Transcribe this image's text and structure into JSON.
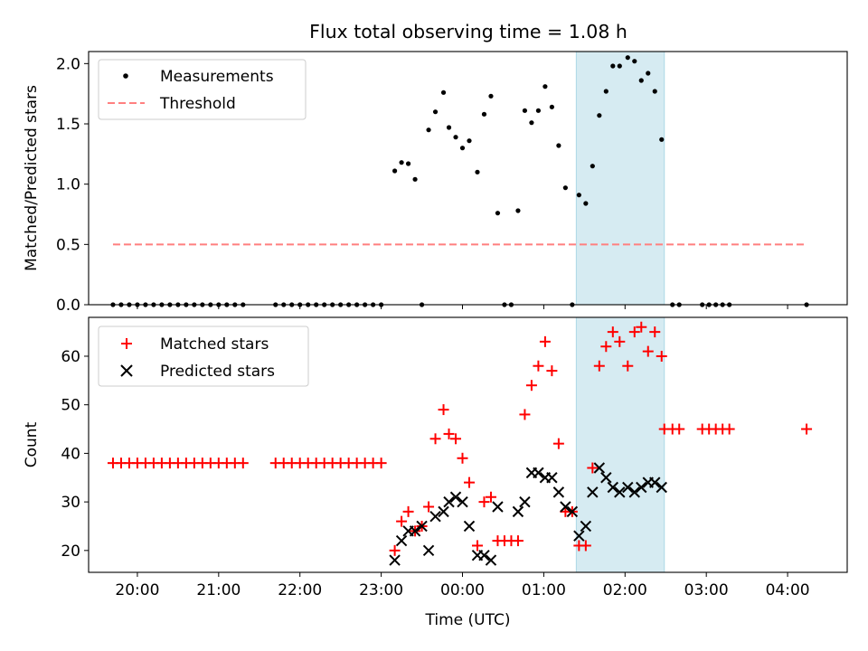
{
  "chart_data": [
    {
      "type": "scatter",
      "title": "Flux total observing time = 1.08 h",
      "xlabel": "",
      "ylabel": "Matched/Predicted stars",
      "ylim": [
        0,
        2.1
      ],
      "xlim": [
        "19:24",
        "04:44"
      ],
      "yticks": [
        "0.0",
        "0.5",
        "1.0",
        "1.5",
        "2.0"
      ],
      "legend_position": "top-left",
      "highlight_span": {
        "start": "01:24",
        "end": "02:29",
        "color": "#add8e6"
      },
      "series": [
        {
          "name": "Measurements",
          "color": "#000000",
          "marker": "dot",
          "points": [
            [
              "19:42",
              0
            ],
            [
              "19:48",
              0
            ],
            [
              "19:54",
              0
            ],
            [
              "20:00",
              0
            ],
            [
              "20:06",
              0
            ],
            [
              "20:12",
              0
            ],
            [
              "20:18",
              0
            ],
            [
              "20:24",
              0
            ],
            [
              "20:30",
              0
            ],
            [
              "20:36",
              0
            ],
            [
              "20:42",
              0
            ],
            [
              "20:48",
              0
            ],
            [
              "20:54",
              0
            ],
            [
              "21:00",
              0
            ],
            [
              "21:06",
              0
            ],
            [
              "21:12",
              0
            ],
            [
              "21:18",
              0
            ],
            [
              "21:42",
              0
            ],
            [
              "21:48",
              0
            ],
            [
              "21:54",
              0
            ],
            [
              "22:00",
              0
            ],
            [
              "22:06",
              0
            ],
            [
              "22:12",
              0
            ],
            [
              "22:18",
              0
            ],
            [
              "22:24",
              0
            ],
            [
              "22:30",
              0
            ],
            [
              "22:36",
              0
            ],
            [
              "22:42",
              0
            ],
            [
              "22:48",
              0
            ],
            [
              "22:54",
              0
            ],
            [
              "23:00",
              0
            ],
            [
              "23:10",
              1.11
            ],
            [
              "23:15",
              1.18
            ],
            [
              "23:20",
              1.17
            ],
            [
              "23:25",
              1.04
            ],
            [
              "23:30",
              0
            ],
            [
              "23:35",
              1.45
            ],
            [
              "23:40",
              1.6
            ],
            [
              "23:46",
              1.76
            ],
            [
              "23:50",
              1.47
            ],
            [
              "23:55",
              1.39
            ],
            [
              "00:00",
              1.3
            ],
            [
              "00:05",
              1.36
            ],
            [
              "00:11",
              1.1
            ],
            [
              "00:16",
              1.58
            ],
            [
              "00:21",
              1.73
            ],
            [
              "00:26",
              0.76
            ],
            [
              "00:31",
              0
            ],
            [
              "00:36",
              0
            ],
            [
              "00:41",
              0.78
            ],
            [
              "00:46",
              1.61
            ],
            [
              "00:51",
              1.51
            ],
            [
              "00:56",
              1.61
            ],
            [
              "01:01",
              1.81
            ],
            [
              "01:06",
              1.64
            ],
            [
              "01:11",
              1.32
            ],
            [
              "01:16",
              0.97
            ],
            [
              "01:21",
              0
            ],
            [
              "01:26",
              0.91
            ],
            [
              "01:31",
              0.84
            ],
            [
              "01:36",
              1.15
            ],
            [
              "01:41",
              1.57
            ],
            [
              "01:46",
              1.77
            ],
            [
              "01:51",
              1.98
            ],
            [
              "01:56",
              1.98
            ],
            [
              "02:02",
              2.05
            ],
            [
              "02:07",
              2.02
            ],
            [
              "02:12",
              1.86
            ],
            [
              "02:17",
              1.92
            ],
            [
              "02:22",
              1.77
            ],
            [
              "02:27",
              1.37
            ],
            [
              "02:35",
              0
            ],
            [
              "02:40",
              0
            ],
            [
              "02:57",
              0
            ],
            [
              "03:02",
              0
            ],
            [
              "03:07",
              0
            ],
            [
              "03:12",
              0
            ],
            [
              "03:17",
              0
            ],
            [
              "04:14",
              0
            ]
          ]
        },
        {
          "name": "Threshold",
          "color": "#ff7f7f",
          "style": "dashed",
          "points": [
            [
              "19:42",
              0.5
            ],
            [
              "04:14",
              0.5
            ]
          ]
        }
      ]
    },
    {
      "type": "scatter",
      "title": "",
      "xlabel": "Time (UTC)",
      "ylabel": "Count",
      "ylim": [
        15.5,
        68
      ],
      "xlim": [
        "19:24",
        "04:44"
      ],
      "yticks": [
        "20",
        "30",
        "40",
        "50",
        "60"
      ],
      "xticks": [
        "20:00",
        "21:00",
        "22:00",
        "23:00",
        "00:00",
        "01:00",
        "02:00",
        "03:00",
        "04:00"
      ],
      "legend_position": "top-left",
      "highlight_span": {
        "start": "01:24",
        "end": "02:29",
        "color": "#add8e6"
      },
      "series": [
        {
          "name": "Matched stars",
          "color": "#ff0000",
          "marker": "plus",
          "points": [
            [
              "19:42",
              38
            ],
            [
              "19:48",
              38
            ],
            [
              "19:54",
              38
            ],
            [
              "20:00",
              38
            ],
            [
              "20:06",
              38
            ],
            [
              "20:12",
              38
            ],
            [
              "20:18",
              38
            ],
            [
              "20:24",
              38
            ],
            [
              "20:30",
              38
            ],
            [
              "20:36",
              38
            ],
            [
              "20:42",
              38
            ],
            [
              "20:48",
              38
            ],
            [
              "20:54",
              38
            ],
            [
              "21:00",
              38
            ],
            [
              "21:06",
              38
            ],
            [
              "21:12",
              38
            ],
            [
              "21:18",
              38
            ],
            [
              "21:42",
              38
            ],
            [
              "21:48",
              38
            ],
            [
              "21:54",
              38
            ],
            [
              "22:00",
              38
            ],
            [
              "22:06",
              38
            ],
            [
              "22:12",
              38
            ],
            [
              "22:18",
              38
            ],
            [
              "22:24",
              38
            ],
            [
              "22:30",
              38
            ],
            [
              "22:36",
              38
            ],
            [
              "22:42",
              38
            ],
            [
              "22:48",
              38
            ],
            [
              "22:54",
              38
            ],
            [
              "23:00",
              38
            ],
            [
              "23:10",
              20
            ],
            [
              "23:15",
              26
            ],
            [
              "23:20",
              28
            ],
            [
              "23:25",
              24
            ],
            [
              "23:30",
              25
            ],
            [
              "23:35",
              29
            ],
            [
              "23:40",
              43
            ],
            [
              "23:46",
              49
            ],
            [
              "23:50",
              44
            ],
            [
              "23:55",
              43
            ],
            [
              "00:00",
              39
            ],
            [
              "00:05",
              34
            ],
            [
              "00:11",
              21
            ],
            [
              "00:16",
              30
            ],
            [
              "00:21",
              31
            ],
            [
              "00:26",
              22
            ],
            [
              "00:31",
              22
            ],
            [
              "00:36",
              22
            ],
            [
              "00:41",
              22
            ],
            [
              "00:46",
              48
            ],
            [
              "00:51",
              54
            ],
            [
              "00:56",
              58
            ],
            [
              "01:01",
              63
            ],
            [
              "01:06",
              57
            ],
            [
              "01:11",
              42
            ],
            [
              "01:16",
              28
            ],
            [
              "01:21",
              28
            ],
            [
              "01:26",
              21
            ],
            [
              "01:31",
              21
            ],
            [
              "01:36",
              37
            ],
            [
              "01:41",
              58
            ],
            [
              "01:46",
              62
            ],
            [
              "01:51",
              65
            ],
            [
              "01:56",
              63
            ],
            [
              "02:02",
              58
            ],
            [
              "02:07",
              65
            ],
            [
              "02:12",
              66
            ],
            [
              "02:17",
              61
            ],
            [
              "02:22",
              65
            ],
            [
              "02:27",
              60
            ],
            [
              "02:29",
              45
            ],
            [
              "02:35",
              45
            ],
            [
              "02:40",
              45
            ],
            [
              "02:57",
              45
            ],
            [
              "03:02",
              45
            ],
            [
              "03:07",
              45
            ],
            [
              "03:12",
              45
            ],
            [
              "03:17",
              45
            ],
            [
              "04:14",
              45
            ]
          ]
        },
        {
          "name": "Predicted stars",
          "color": "#000000",
          "marker": "x",
          "points": [
            [
              "23:10",
              18
            ],
            [
              "23:15",
              22
            ],
            [
              "23:20",
              24
            ],
            [
              "23:25",
              24
            ],
            [
              "23:30",
              25
            ],
            [
              "23:35",
              20
            ],
            [
              "23:40",
              27
            ],
            [
              "23:46",
              28
            ],
            [
              "23:50",
              30
            ],
            [
              "23:55",
              31
            ],
            [
              "00:00",
              30
            ],
            [
              "00:05",
              25
            ],
            [
              "00:11",
              19
            ],
            [
              "00:16",
              19
            ],
            [
              "00:21",
              18
            ],
            [
              "00:26",
              29
            ],
            [
              "00:41",
              28
            ],
            [
              "00:46",
              30
            ],
            [
              "00:51",
              36
            ],
            [
              "00:56",
              36
            ],
            [
              "01:01",
              35
            ],
            [
              "01:06",
              35
            ],
            [
              "01:11",
              32
            ],
            [
              "01:16",
              29
            ],
            [
              "01:21",
              28
            ],
            [
              "01:26",
              23
            ],
            [
              "01:31",
              25
            ],
            [
              "01:36",
              32
            ],
            [
              "01:41",
              37
            ],
            [
              "01:46",
              35
            ],
            [
              "01:51",
              33
            ],
            [
              "01:56",
              32
            ],
            [
              "02:02",
              33
            ],
            [
              "02:07",
              32
            ],
            [
              "02:12",
              33
            ],
            [
              "02:17",
              34
            ],
            [
              "02:22",
              34
            ],
            [
              "02:27",
              33
            ]
          ]
        }
      ]
    }
  ]
}
